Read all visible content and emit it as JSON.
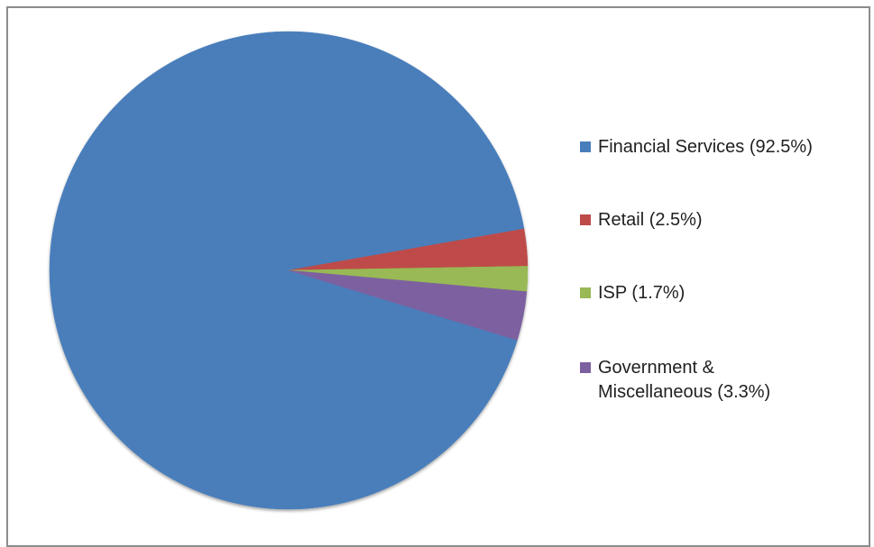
{
  "chart_data": {
    "type": "pie",
    "title": "",
    "slices": [
      {
        "label": "Financial Services (92.5%)",
        "value": 92.5,
        "color": "#4a7ebb"
      },
      {
        "label": "Retail (2.5%)",
        "value": 2.5,
        "color": "#be4b48"
      },
      {
        "label": "ISP (1.7%)",
        "value": 1.7,
        "color": "#98b954"
      },
      {
        "label": "Government & Miscellaneous (3.3%)",
        "value": 3.3,
        "color": "#7d60a0"
      }
    ],
    "legend_position": "right"
  },
  "legend": {
    "items": [
      {
        "text": "Financial Services (92.5%)",
        "color": "#4a7ebb"
      },
      {
        "text": "Retail (2.5%)",
        "color": "#be4b48"
      },
      {
        "text": "ISP (1.7%)",
        "color": "#98b954"
      },
      {
        "text": "Government &\nMiscellaneous (3.3%)",
        "color": "#7d60a0"
      }
    ]
  }
}
